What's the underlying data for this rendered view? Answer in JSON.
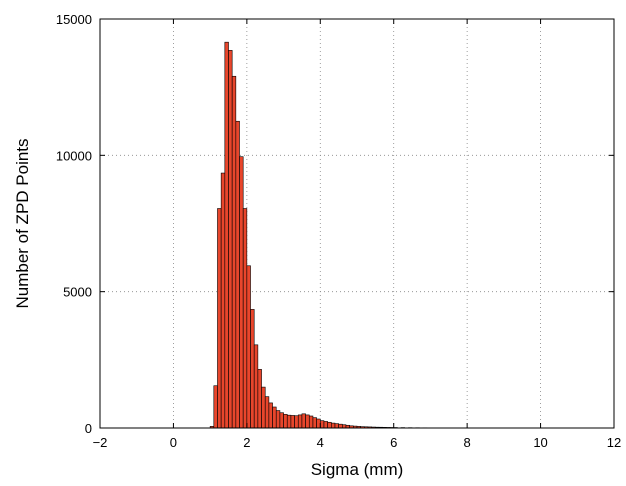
{
  "chart_data": {
    "type": "bar",
    "title": "",
    "xlabel": "Sigma (mm)",
    "ylabel": "Number of ZPD Points",
    "xlim": [
      -2,
      12
    ],
    "ylim": [
      0,
      15000
    ],
    "xticks": [
      -2,
      0,
      2,
      4,
      6,
      8,
      10,
      12
    ],
    "xtick_labels": [
      "−2",
      "0",
      "2",
      "4",
      "6",
      "8",
      "10",
      "12"
    ],
    "yticks": [
      0,
      5000,
      10000,
      15000
    ],
    "ytick_labels": [
      "0",
      "5000",
      "10000",
      "15000"
    ],
    "grid": true,
    "bar_color": "#e8462c",
    "bin_width": 0.1,
    "bin_starts": [
      1.0,
      1.1,
      1.2,
      1.3,
      1.4,
      1.5,
      1.6,
      1.7,
      1.8,
      1.9,
      2.0,
      2.1,
      2.2,
      2.3,
      2.4,
      2.5,
      2.6,
      2.7,
      2.8,
      2.9,
      3.0,
      3.1,
      3.2,
      3.3,
      3.4,
      3.5,
      3.6,
      3.7,
      3.8,
      3.9,
      4.0,
      4.1,
      4.2,
      4.3,
      4.4,
      4.5,
      4.6,
      4.7,
      4.8,
      4.9,
      5.0,
      5.1,
      5.2,
      5.3,
      5.4,
      5.5,
      5.6,
      5.7,
      5.8,
      5.9,
      6.0,
      6.2,
      6.4,
      6.6,
      6.8,
      7.0,
      7.5,
      8.0,
      8.5,
      9.0
    ],
    "values": [
      60,
      1550,
      8050,
      9350,
      14150,
      13850,
      12900,
      11250,
      9950,
      8050,
      5950,
      4350,
      3050,
      2150,
      1500,
      1150,
      920,
      770,
      640,
      560,
      500,
      470,
      460,
      450,
      480,
      520,
      480,
      440,
      380,
      330,
      270,
      240,
      210,
      180,
      160,
      140,
      120,
      100,
      80,
      70,
      60,
      50,
      45,
      40,
      35,
      30,
      28,
      25,
      22,
      20,
      18,
      15,
      12,
      10,
      8,
      6,
      5,
      4,
      3,
      2
    ]
  }
}
